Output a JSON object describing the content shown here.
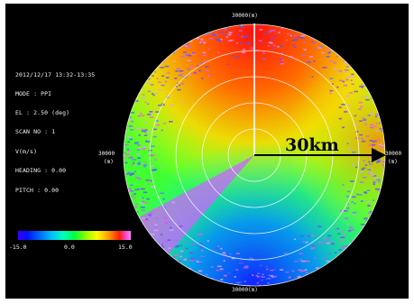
{
  "info": {
    "datetime": "2012/12/17 13:32-13:35",
    "mode": "MODE : PPI",
    "elevation": "EL : 2.50 (deg)",
    "scan_no": "SCAN NO : 1",
    "variable": "V(m/s)",
    "heading": "HEADING : 0.00",
    "pitch": "PITCH : 0.00"
  },
  "axes": {
    "top": "30000(m)",
    "bottom": "30000(m)",
    "left_value": "30000",
    "left_unit": "(m)",
    "right_value": "30000",
    "right_unit": "(m)"
  },
  "range_label": "30km",
  "colorbar": {
    "min_label": "-15.0",
    "mid_label": "0.0",
    "max_label": "15.0",
    "min": -15.0,
    "max": 15.0
  },
  "colors": {
    "background": "#000000",
    "range_arrow": "#000000",
    "north_line": "#ffffff"
  }
}
